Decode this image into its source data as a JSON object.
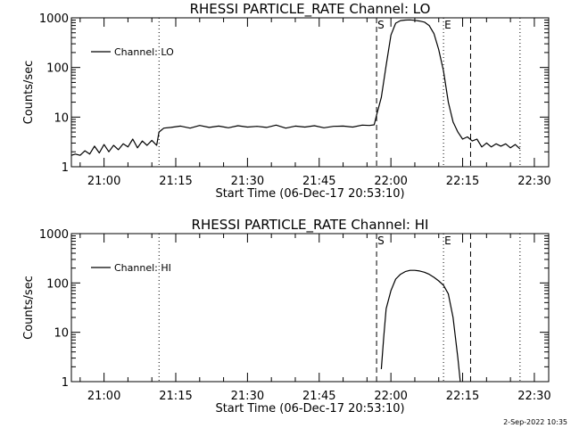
{
  "footer": {
    "timestamp": "2-Sep-2022 10:35"
  },
  "axis_label_style": {
    "ylabel_rotation_deg": -90
  },
  "chart_data": [
    {
      "type": "line",
      "title": "RHESSI PARTICLE_RATE Channel: LO",
      "xlabel": "Start Time (06-Dec-17 20:53:10)",
      "ylabel": "Counts/sec",
      "yscale": "log",
      "ylim": [
        1,
        1000
      ],
      "xlim": [
        "20:53:10",
        "22:33:00"
      ],
      "yticks": [
        1,
        10,
        100,
        1000
      ],
      "ytick_labels": [
        "1",
        "10",
        "100",
        "1000"
      ],
      "xticks": [
        "21:00",
        "21:15",
        "21:30",
        "21:45",
        "22:00",
        "22:15",
        "22:30"
      ],
      "legend": {
        "placement": "top-left",
        "entries": [
          "Channel: LO"
        ]
      },
      "markers": [
        {
          "label": "",
          "time": "21:11:30",
          "style": "dotted"
        },
        {
          "label": "S",
          "time": "21:57:00",
          "style": "dashed"
        },
        {
          "label": "E",
          "time": "22:11:00",
          "style": "dotted"
        },
        {
          "label": "",
          "time": "22:16:40",
          "style": "dashed"
        },
        {
          "label": "",
          "time": "22:27:00",
          "style": "dotted"
        }
      ],
      "series": [
        {
          "name": "Channel: LO",
          "x": [
            "20:53:10",
            "20:54:00",
            "20:55:00",
            "20:56:00",
            "20:57:00",
            "20:58:00",
            "20:59:00",
            "21:00:00",
            "21:01:00",
            "21:02:00",
            "21:03:00",
            "21:04:00",
            "21:05:00",
            "21:06:00",
            "21:07:00",
            "21:08:00",
            "21:09:00",
            "21:10:00",
            "21:11:00",
            "21:11:30",
            "21:12:30",
            "21:14:00",
            "21:16:00",
            "21:18:00",
            "21:20:00",
            "21:22:00",
            "21:24:00",
            "21:26:00",
            "21:28:00",
            "21:30:00",
            "21:32:00",
            "21:34:00",
            "21:36:00",
            "21:38:00",
            "21:40:00",
            "21:42:00",
            "21:44:00",
            "21:46:00",
            "21:48:00",
            "21:50:00",
            "21:52:00",
            "21:54:00",
            "21:55:30",
            "21:56:30",
            "21:57:00",
            "21:58:00",
            "21:59:00",
            "22:00:00",
            "22:01:00",
            "22:02:00",
            "22:03:00",
            "22:04:00",
            "22:05:00",
            "22:06:00",
            "22:07:00",
            "22:08:00",
            "22:09:00",
            "22:10:00",
            "22:11:00",
            "22:12:00",
            "22:13:00",
            "22:14:00",
            "22:15:00",
            "22:16:00",
            "22:17:00",
            "22:18:00",
            "22:19:00",
            "22:20:00",
            "22:21:00",
            "22:22:00",
            "22:23:00",
            "22:24:00",
            "22:25:00",
            "22:26:00",
            "22:27:00"
          ],
          "values": [
            1.7,
            1.8,
            1.7,
            2.1,
            1.8,
            2.6,
            1.9,
            2.8,
            2.0,
            2.7,
            2.2,
            2.9,
            2.5,
            3.6,
            2.4,
            3.3,
            2.7,
            3.4,
            2.7,
            5.0,
            6.0,
            6.2,
            6.6,
            6.0,
            6.8,
            6.2,
            6.6,
            6.1,
            6.7,
            6.3,
            6.5,
            6.2,
            6.9,
            6.0,
            6.6,
            6.3,
            6.7,
            6.1,
            6.5,
            6.6,
            6.3,
            6.9,
            6.8,
            7.0,
            11.0,
            25.0,
            110.0,
            450.0,
            780.0,
            880.0,
            900.0,
            910.0,
            890.0,
            860.0,
            820.0,
            700.0,
            480.0,
            230.0,
            85.0,
            20.0,
            8.0,
            5.0,
            3.6,
            4.0,
            3.3,
            3.6,
            2.5,
            3.0,
            2.5,
            2.9,
            2.6,
            2.9,
            2.4,
            2.8,
            2.3
          ]
        }
      ]
    },
    {
      "type": "line",
      "title": "RHESSI PARTICLE_RATE Channel: HI",
      "xlabel": "Start Time (06-Dec-17 20:53:10)",
      "ylabel": "Counts/sec",
      "yscale": "log",
      "ylim": [
        1,
        1000
      ],
      "xlim": [
        "20:53:10",
        "22:33:00"
      ],
      "yticks": [
        1,
        10,
        100,
        1000
      ],
      "ytick_labels": [
        "1",
        "10",
        "100",
        "1000"
      ],
      "xticks": [
        "21:00",
        "21:15",
        "21:30",
        "21:45",
        "22:00",
        "22:15",
        "22:30"
      ],
      "legend": {
        "placement": "top-left",
        "entries": [
          "Channel: HI"
        ]
      },
      "markers": [
        {
          "label": "",
          "time": "21:11:30",
          "style": "dotted"
        },
        {
          "label": "S",
          "time": "21:57:00",
          "style": "dashed"
        },
        {
          "label": "E",
          "time": "22:11:00",
          "style": "dotted"
        },
        {
          "label": "",
          "time": "22:16:40",
          "style": "dashed"
        },
        {
          "label": "",
          "time": "22:27:00",
          "style": "dotted"
        }
      ],
      "series": [
        {
          "name": "Channel: HI",
          "x": [
            "21:58:00",
            "21:58:30",
            "21:59:00",
            "22:00:00",
            "22:01:00",
            "22:02:00",
            "22:03:00",
            "22:04:00",
            "22:05:00",
            "22:06:00",
            "22:07:00",
            "22:08:00",
            "22:09:00",
            "22:10:00",
            "22:11:00",
            "22:12:00",
            "22:13:00",
            "22:14:00",
            "22:14:30"
          ],
          "values": [
            1.8,
            8.0,
            30.0,
            70.0,
            120.0,
            150.0,
            170.0,
            180.0,
            180.0,
            175.0,
            165.0,
            150.0,
            130.0,
            110.0,
            90.0,
            60.0,
            20.0,
            3.0,
            1.0
          ]
        }
      ]
    }
  ]
}
